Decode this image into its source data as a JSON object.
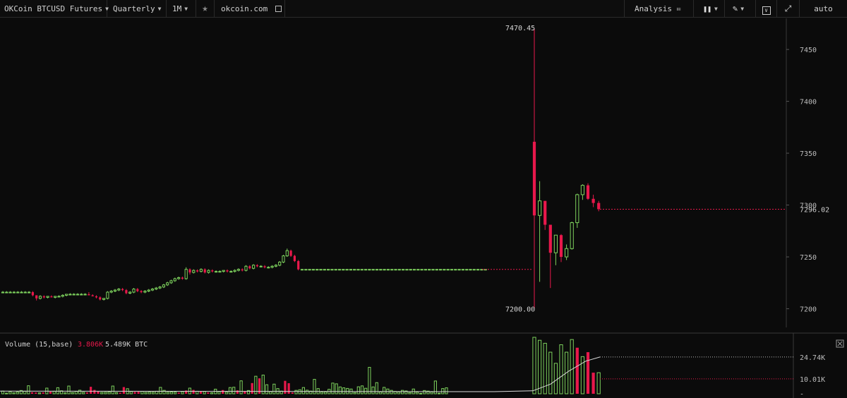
{
  "toolbar": {
    "symbol": "OKCoin BTCUSD Futures",
    "contract": "Quarterly",
    "interval": "1M",
    "site": "okcoin.com",
    "analysis": "Analysis",
    "scale_mode": "auto"
  },
  "price_axis": {
    "ticks": [
      "7450",
      "7400",
      "7350",
      "7300",
      "7250",
      "7200"
    ],
    "last_price_label": "7296.02"
  },
  "annotations": {
    "high_label": "7470.45",
    "low_label": "7200.00"
  },
  "volume_pane": {
    "legend_name": "Volume (15,base)",
    "legend_value_1": "3.806K",
    "legend_value_2": "5.489K BTC",
    "ticks": [
      "24.74K",
      "10.01K",
      "-"
    ]
  },
  "colors": {
    "up": "#7dd15d",
    "down": "#e8184b",
    "background": "#0b0b0b"
  },
  "chart_data": {
    "type": "candlestick",
    "price_ylim": [
      7182,
      7480
    ],
    "candles_ohlc": [
      [
        7216,
        7217,
        7215,
        7216
      ],
      [
        7216,
        7217,
        7215,
        7216
      ],
      [
        7216,
        7217,
        7215,
        7216
      ],
      [
        7216,
        7217,
        7215,
        7216
      ],
      [
        7216,
        7217,
        7215,
        7216
      ],
      [
        7216,
        7217,
        7215,
        7216
      ],
      [
        7216,
        7217,
        7215,
        7216
      ],
      [
        7216,
        7217,
        7215,
        7216
      ],
      [
        7216,
        7217,
        7212,
        7213
      ],
      [
        7213,
        7213,
        7208,
        7210
      ],
      [
        7210,
        7213,
        7209,
        7212
      ],
      [
        7212,
        7213,
        7210,
        7211
      ],
      [
        7211,
        7212,
        7210,
        7212
      ],
      [
        7212,
        7213,
        7211,
        7211
      ],
      [
        7211,
        7212,
        7210,
        7212
      ],
      [
        7212,
        7213,
        7211,
        7212
      ],
      [
        7212,
        7214,
        7211,
        7213
      ],
      [
        7213,
        7214,
        7212,
        7214
      ],
      [
        7214,
        7215,
        7213,
        7214
      ],
      [
        7214,
        7215,
        7213,
        7214
      ],
      [
        7214,
        7215,
        7213,
        7214
      ],
      [
        7214,
        7215,
        7213,
        7214
      ],
      [
        7214,
        7215,
        7213,
        7214
      ],
      [
        7214,
        7216,
        7213,
        7213
      ],
      [
        7213,
        7214,
        7212,
        7212
      ],
      [
        7212,
        7213,
        7210,
        7211
      ],
      [
        7211,
        7212,
        7208,
        7209
      ],
      [
        7209,
        7210,
        7208,
        7210
      ],
      [
        7210,
        7217,
        7209,
        7216
      ],
      [
        7216,
        7218,
        7215,
        7217
      ],
      [
        7217,
        7219,
        7216,
        7218
      ],
      [
        7218,
        7220,
        7217,
        7219
      ],
      [
        7219,
        7220,
        7217,
        7218
      ],
      [
        7218,
        7219,
        7214,
        7215
      ],
      [
        7215,
        7217,
        7214,
        7216
      ],
      [
        7216,
        7220,
        7215,
        7219
      ],
      [
        7219,
        7220,
        7216,
        7217
      ],
      [
        7217,
        7218,
        7215,
        7216
      ],
      [
        7216,
        7218,
        7215,
        7217
      ],
      [
        7217,
        7219,
        7216,
        7218
      ],
      [
        7218,
        7220,
        7217,
        7219
      ],
      [
        7219,
        7221,
        7218,
        7220
      ],
      [
        7220,
        7222,
        7219,
        7221
      ],
      [
        7221,
        7224,
        7220,
        7223
      ],
      [
        7223,
        7226,
        7222,
        7225
      ],
      [
        7225,
        7228,
        7224,
        7227
      ],
      [
        7227,
        7230,
        7226,
        7229
      ],
      [
        7229,
        7231,
        7228,
        7230
      ],
      [
        7230,
        7231,
        7228,
        7229
      ],
      [
        7229,
        7240,
        7228,
        7238
      ],
      [
        7238,
        7239,
        7233,
        7235
      ],
      [
        7235,
        7238,
        7234,
        7237
      ],
      [
        7237,
        7238,
        7235,
        7236
      ],
      [
        7236,
        7239,
        7235,
        7238
      ],
      [
        7238,
        7239,
        7234,
        7235
      ],
      [
        7235,
        7238,
        7234,
        7237
      ],
      [
        7237,
        7238,
        7235,
        7236
      ],
      [
        7236,
        7237,
        7235,
        7236
      ],
      [
        7236,
        7237,
        7235,
        7236
      ],
      [
        7236,
        7237,
        7235,
        7237
      ],
      [
        7237,
        7238,
        7235,
        7236
      ],
      [
        7236,
        7237,
        7235,
        7236
      ],
      [
        7236,
        7238,
        7235,
        7237
      ],
      [
        7237,
        7239,
        7236,
        7238
      ],
      [
        7238,
        7239,
        7236,
        7237
      ],
      [
        7237,
        7242,
        7236,
        7241
      ],
      [
        7241,
        7242,
        7238,
        7239
      ],
      [
        7239,
        7243,
        7238,
        7242
      ],
      [
        7242,
        7243,
        7240,
        7241
      ],
      [
        7241,
        7242,
        7240,
        7241
      ],
      [
        7241,
        7242,
        7239,
        7240
      ],
      [
        7240,
        7241,
        7239,
        7240
      ],
      [
        7240,
        7242,
        7239,
        7241
      ],
      [
        7241,
        7243,
        7240,
        7242
      ],
      [
        7242,
        7246,
        7241,
        7245
      ],
      [
        7245,
        7252,
        7244,
        7251
      ],
      [
        7251,
        7258,
        7250,
        7256
      ],
      [
        7256,
        7257,
        7250,
        7251
      ],
      [
        7251,
        7252,
        7245,
        7246
      ],
      [
        7246,
        7247,
        7237,
        7238
      ],
      [
        7238,
        7238,
        7237,
        7238
      ],
      [
        7238,
        7238,
        7237,
        7238
      ],
      [
        7238,
        7238,
        7237,
        7238
      ],
      [
        7238,
        7238,
        7237,
        7238
      ],
      [
        7238,
        7238,
        7237,
        7238
      ],
      [
        7238,
        7238,
        7237,
        7238
      ],
      [
        7238,
        7238,
        7237,
        7238
      ],
      [
        7238,
        7238,
        7237,
        7238
      ],
      [
        7238,
        7238,
        7237,
        7238
      ],
      [
        7238,
        7238,
        7237,
        7238
      ],
      [
        7238,
        7238,
        7237,
        7238
      ],
      [
        7238,
        7238,
        7237,
        7238
      ],
      [
        7238,
        7238,
        7237,
        7238
      ],
      [
        7238,
        7238,
        7237,
        7238
      ],
      [
        7238,
        7238,
        7237,
        7238
      ],
      [
        7238,
        7238,
        7237,
        7238
      ],
      [
        7238,
        7238,
        7237,
        7238
      ],
      [
        7238,
        7238,
        7237,
        7238
      ],
      [
        7238,
        7238,
        7237,
        7238
      ],
      [
        7238,
        7238,
        7237,
        7238
      ],
      [
        7238,
        7238,
        7237,
        7238
      ],
      [
        7238,
        7238,
        7237,
        7238
      ],
      [
        7238,
        7238,
        7237,
        7238
      ],
      [
        7238,
        7238,
        7237,
        7238
      ],
      [
        7238,
        7238,
        7237,
        7238
      ],
      [
        7238,
        7238,
        7237,
        7238
      ],
      [
        7238,
        7238,
        7237,
        7238
      ],
      [
        7238,
        7238,
        7237,
        7238
      ],
      [
        7238,
        7238,
        7237,
        7238
      ],
      [
        7238,
        7238,
        7237,
        7238
      ],
      [
        7238,
        7238,
        7237,
        7238
      ],
      [
        7238,
        7238,
        7237,
        7238
      ],
      [
        7238,
        7238,
        7237,
        7238
      ],
      [
        7238,
        7238,
        7237,
        7238
      ],
      [
        7238,
        7238,
        7237,
        7238
      ],
      [
        7238,
        7238,
        7237,
        7238
      ],
      [
        7238,
        7238,
        7237,
        7238
      ],
      [
        7238,
        7238,
        7237,
        7238
      ],
      [
        7238,
        7238,
        7237,
        7238
      ],
      [
        7238,
        7238,
        7237,
        7238
      ],
      [
        7238,
        7238,
        7237,
        7238
      ],
      [
        7238,
        7238,
        7237,
        7238
      ],
      [
        7238,
        7238,
        7237,
        7238
      ],
      [
        7238,
        7238,
        7237,
        7238
      ],
      [
        7238,
        7238,
        7237,
        7238
      ],
      [
        7238,
        7238,
        7237,
        7238
      ],
      [
        7238,
        7238,
        7237,
        7238
      ],
      [
        7238,
        7238,
        7237,
        7238
      ],
      [
        7238,
        7238,
        7237,
        7238
      ],
      [
        7238,
        7238,
        7237,
        7238
      ],
      [
        7361,
        7470,
        7200,
        7290
      ],
      [
        7290,
        7323,
        7226,
        7304
      ],
      [
        7304,
        7304,
        7276,
        7281
      ],
      [
        7281,
        7281,
        7220,
        7254
      ],
      [
        7254,
        7271,
        7242,
        7271
      ],
      [
        7271,
        7272,
        7245,
        7250
      ],
      [
        7250,
        7262,
        7247,
        7258
      ],
      [
        7258,
        7284,
        7257,
        7283
      ],
      [
        7283,
        7311,
        7278,
        7310
      ],
      [
        7310,
        7320,
        7305,
        7319
      ],
      [
        7319,
        7321,
        7305,
        7306
      ],
      [
        7306,
        7310,
        7298,
        7302
      ],
      [
        7302,
        7304,
        7294,
        7296
      ]
    ],
    "volume_values": [
      1800,
      400,
      1400,
      600,
      1200,
      2200,
      1700,
      5400,
      1000,
      800,
      600,
      900,
      3800,
      1400,
      1700,
      4100,
      2000,
      600,
      5200,
      800,
      1600,
      2400,
      1000,
      900,
      4700,
      2600,
      1500,
      900,
      1000,
      1200,
      5200,
      800,
      700,
      4500,
      3400,
      1500,
      1200,
      1300,
      1600,
      900,
      1100,
      1000,
      1700,
      4300,
      2300,
      1000,
      1200,
      1100,
      800,
      1400,
      2200,
      3800,
      2600,
      1700,
      1400,
      1500,
      900,
      700,
      3100,
      1400,
      2500,
      1100,
      4200,
      4400,
      2300,
      8700,
      1900,
      2200,
      7200,
      11800,
      10400,
      12600,
      6100,
      1400,
      6500,
      3500,
      1800,
      8700,
      7100,
      900,
      2300,
      2700,
      4200,
      2400,
      1800,
      9700,
      3500,
      1200,
      1200,
      3000,
      7200,
      6700,
      4600,
      4000,
      3600,
      3200,
      800,
      4700,
      5300,
      3700,
      17800,
      4600,
      7500,
      1200,
      4300,
      3200,
      2300,
      1600,
      1200,
      2300,
      1900,
      800,
      3200,
      1100,
      300,
      2200,
      1800,
      1200,
      8600,
      400,
      3500,
      4000,
      38000,
      36000,
      34000,
      28000,
      20500,
      33000,
      28000,
      36500,
      31000,
      25000,
      28000,
      14200,
      14200
    ],
    "volume_ma": [
      2000,
      6500,
      15000,
      22000,
      24740
    ],
    "volume_ylim": [
      0,
      38000
    ],
    "volume_axis_ticks": [
      "24.74K",
      "10.01K",
      "-"
    ]
  }
}
